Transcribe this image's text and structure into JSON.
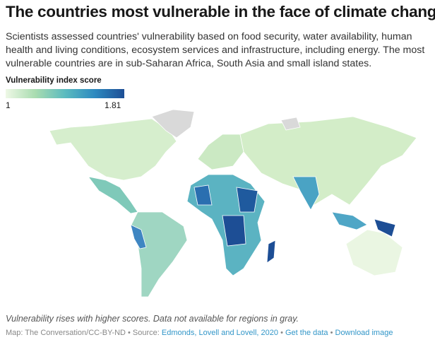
{
  "title": "The countries most vulnerable in the face of climate change",
  "description": "Scientists assessed countries' vulnerability based on food security, water availability, human health and living conditions, ecosystem services and infrastructure, including energy. The most vulnerable countries are in sub-Saharan Africa, South Asia and small island states.",
  "legend": {
    "title": "Vulnerability index score",
    "min": "1",
    "max": "1.81"
  },
  "colors": {
    "no_data": "#d9d9d9",
    "low": "#eef8e6",
    "high": "#1d4e95"
  },
  "regions": [
    {
      "name": "north-america",
      "color": "#d6eecd"
    },
    {
      "name": "greenland",
      "color": "#d9d9d9"
    },
    {
      "name": "central-america",
      "color": "#7fc9b9"
    },
    {
      "name": "south-america",
      "color": "#9fd6c2"
    },
    {
      "name": "andes",
      "color": "#3f86c2"
    },
    {
      "name": "europe",
      "color": "#cbe9c3"
    },
    {
      "name": "africa",
      "color": "#5bb3c2"
    },
    {
      "name": "sahel",
      "color": "#1f5a9e"
    },
    {
      "name": "central-africa",
      "color": "#1d4e95"
    },
    {
      "name": "west-africa",
      "color": "#2a6fb0"
    },
    {
      "name": "madagascar",
      "color": "#1d4e95"
    },
    {
      "name": "asia",
      "color": "#d3edc8"
    },
    {
      "name": "svalbard",
      "color": "#d9d9d9"
    },
    {
      "name": "south-asia",
      "color": "#4aa3c4"
    },
    {
      "name": "southeast-asia",
      "color": "#4fa6c6"
    },
    {
      "name": "papua-new-guinea",
      "color": "#1d4e95"
    },
    {
      "name": "australia",
      "color": "#eaf6e2"
    }
  ],
  "note": "Vulnerability rises with higher scores. Data not available for regions in gray.",
  "credit": "Map: The Conversation/CC-BY-ND • Source: ",
  "source_link": "Edmonds, Lovell and Lovell, 2020",
  "sep": " • ",
  "get_data": "Get the data",
  "download": "Download image"
}
